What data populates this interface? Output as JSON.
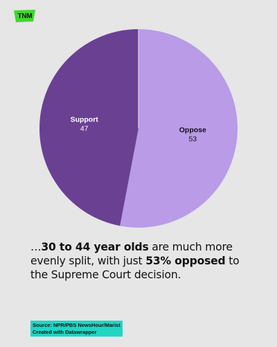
{
  "logo": {
    "text": "TNM",
    "color": "#41d62f"
  },
  "chart_data": {
    "type": "pie",
    "slices": [
      {
        "label": "Support",
        "value": 47,
        "color": "#6a4093",
        "text_color": "#ffffff"
      },
      {
        "label": "Oppose",
        "value": 53,
        "color": "#b99be7",
        "text_color": "#111111"
      }
    ]
  },
  "headline": {
    "p1": "…",
    "b1": "30 to 44 year olds",
    "p2": " are much more evenly split, with just ",
    "b2": "53% opposed",
    "p3": " to the Supreme Court decision."
  },
  "source": {
    "line1": "Source: NPR/PBS NewsHour/Marist",
    "line2": "Created with Datawrapper"
  }
}
